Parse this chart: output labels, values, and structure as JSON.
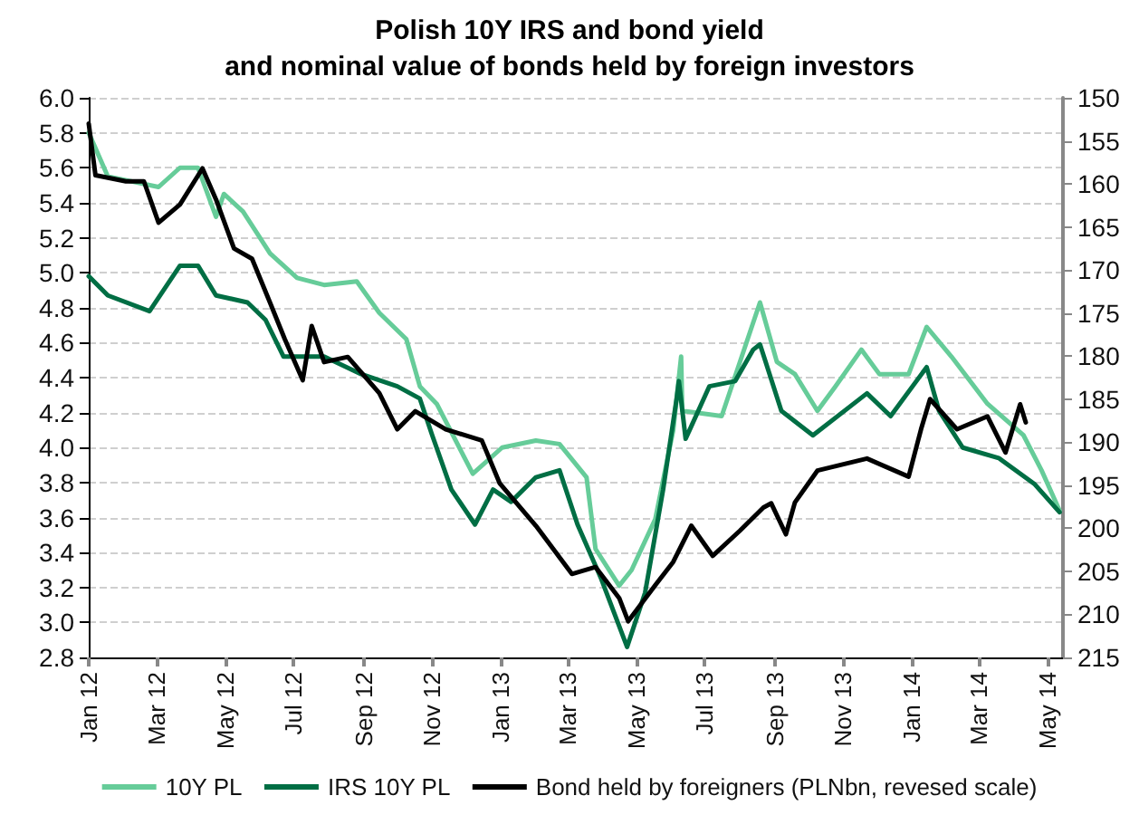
{
  "chart_data": {
    "type": "line",
    "title": "Polish 10Y IRS and bond yield\nand nominal value of bonds held by foreign investors",
    "xlim": [
      "2012-01-01",
      "2014-05-15"
    ],
    "xticks": [
      {
        "value": "2012-01-01",
        "label": "Jan 12"
      },
      {
        "value": "2012-03-01",
        "label": "Mar 12"
      },
      {
        "value": "2012-05-01",
        "label": "May 12"
      },
      {
        "value": "2012-07-01",
        "label": "Jul 12"
      },
      {
        "value": "2012-09-01",
        "label": "Sep 12"
      },
      {
        "value": "2012-11-01",
        "label": "Nov 12"
      },
      {
        "value": "2013-01-01",
        "label": "Jan 13"
      },
      {
        "value": "2013-03-01",
        "label": "Mar 13"
      },
      {
        "value": "2013-05-01",
        "label": "May 13"
      },
      {
        "value": "2013-07-01",
        "label": "Jul 13"
      },
      {
        "value": "2013-09-01",
        "label": "Sep 13"
      },
      {
        "value": "2013-11-01",
        "label": "Nov 13"
      },
      {
        "value": "2014-01-01",
        "label": "Jan 14"
      },
      {
        "value": "2014-03-01",
        "label": "Mar 14"
      },
      {
        "value": "2014-05-01",
        "label": "May 14"
      }
    ],
    "ylim": [
      2.8,
      6.0
    ],
    "yticks": [
      {
        "value": 2.8,
        "label": "2.8"
      },
      {
        "value": 3,
        "label": "3.0"
      },
      {
        "value": 3.2,
        "label": "3.2"
      },
      {
        "value": 3.4,
        "label": "3.4"
      },
      {
        "value": 3.6,
        "label": "3.6"
      },
      {
        "value": 3.8,
        "label": "3.8"
      },
      {
        "value": 4,
        "label": "4.0"
      },
      {
        "value": 4.2,
        "label": "4.2"
      },
      {
        "value": 4.4,
        "label": "4.4"
      },
      {
        "value": 4.6,
        "label": "4.6"
      },
      {
        "value": 4.8,
        "label": "4.8"
      },
      {
        "value": 5,
        "label": "5.0"
      },
      {
        "value": 5.2,
        "label": "5.2"
      },
      {
        "value": 5.4,
        "label": "5.4"
      },
      {
        "value": 5.6,
        "label": "5.6"
      },
      {
        "value": 5.8,
        "label": "5.8"
      },
      {
        "value": 6,
        "label": "6.0"
      }
    ],
    "y2lim": [
      215,
      150
    ],
    "y2ticks": [
      150,
      155,
      160,
      165,
      170,
      175,
      180,
      185,
      190,
      195,
      200,
      205,
      210,
      215
    ],
    "grid": "y",
    "legend": "bottom",
    "marker": "none",
    "line_style": "solid",
    "series": [
      {
        "name": "10Y PL",
        "color": "#66cc99",
        "x": [
          "2012-01-01",
          "2012-01-18",
          "2012-03-03",
          "2012-03-22",
          "2012-04-07",
          "2012-04-23",
          "2012-04-30",
          "2012-05-17",
          "2012-06-10",
          "2012-07-04",
          "2012-07-28",
          "2012-08-26",
          "2012-09-15",
          "2012-10-09",
          "2012-10-21",
          "2012-11-05",
          "2012-12-07",
          "2013-01-02",
          "2013-02-01",
          "2013-02-22",
          "2013-03-18",
          "2013-03-26",
          "2013-04-16",
          "2013-04-27",
          "2013-05-18",
          "2013-06-03",
          "2013-06-10",
          "2013-06-11",
          "2013-07-16",
          "2013-08-19",
          "2013-09-03",
          "2013-09-19",
          "2013-10-09",
          "2013-10-25",
          "2013-11-17",
          "2013-12-03",
          "2013-12-29",
          "2014-01-14",
          "2014-02-05",
          "2014-03-09",
          "2014-04-10",
          "2014-04-26",
          "2014-05-12"
        ],
        "values": [
          5.8,
          5.55,
          5.49,
          5.6,
          5.6,
          5.32,
          5.45,
          5.35,
          5.11,
          4.97,
          4.93,
          4.95,
          4.77,
          4.62,
          4.35,
          4.25,
          3.85,
          4.0,
          4.04,
          4.02,
          3.83,
          3.42,
          3.21,
          3.3,
          3.59,
          4.1,
          4.52,
          4.21,
          4.18,
          4.83,
          4.49,
          4.42,
          4.21,
          4.35,
          4.56,
          4.42,
          4.42,
          4.69,
          4.52,
          4.25,
          4.07,
          3.87,
          3.64
        ]
      },
      {
        "name": "IRS 10Y PL",
        "color": "#006e44",
        "x": [
          "2012-01-01",
          "2012-01-18",
          "2012-02-24",
          "2012-03-22",
          "2012-04-07",
          "2012-04-23",
          "2012-05-21",
          "2012-06-06",
          "2012-06-22",
          "2012-07-28",
          "2012-08-30",
          "2012-10-01",
          "2012-10-21",
          "2012-11-01",
          "2012-11-18",
          "2012-12-09",
          "2012-12-25",
          "2013-01-10",
          "2013-02-01",
          "2013-02-22",
          "2013-03-10",
          "2013-03-31",
          "2013-04-23",
          "2013-05-09",
          "2013-05-25",
          "2013-06-06",
          "2013-06-08",
          "2013-06-14",
          "2013-07-05",
          "2013-07-28",
          "2013-08-13",
          "2013-08-19",
          "2013-09-07",
          "2013-10-05",
          "2013-11-22",
          "2013-12-13",
          "2014-01-14",
          "2014-01-25",
          "2014-02-15",
          "2014-03-19",
          "2014-04-20",
          "2014-05-12"
        ],
        "values": [
          4.98,
          4.87,
          4.78,
          5.04,
          5.04,
          4.87,
          4.83,
          4.73,
          4.52,
          4.52,
          4.42,
          4.35,
          4.28,
          4.07,
          3.76,
          3.56,
          3.76,
          3.69,
          3.83,
          3.87,
          3.56,
          3.25,
          2.86,
          3.17,
          3.76,
          4.28,
          4.38,
          4.05,
          4.35,
          4.38,
          4.56,
          4.59,
          4.21,
          4.07,
          4.31,
          4.18,
          4.46,
          4.21,
          4.0,
          3.94,
          3.79,
          3.63
        ]
      },
      {
        "name": "Bond held by foreigners (PLNbn, revesed scale)",
        "color": "#000000",
        "axis": "y2",
        "x": [
          "2012-01-01",
          "2012-01-07",
          "2012-02-03",
          "2012-02-19",
          "2012-03-03",
          "2012-03-22",
          "2012-04-11",
          "2012-04-23",
          "2012-05-09",
          "2012-05-25",
          "2012-06-10",
          "2012-06-23",
          "2012-07-09",
          "2012-07-17",
          "2012-07-28",
          "2012-08-18",
          "2012-09-15",
          "2012-10-01",
          "2012-10-17",
          "2012-11-13",
          "2012-12-15",
          "2012-12-31",
          "2013-02-01",
          "2013-03-05",
          "2013-03-26",
          "2013-04-16",
          "2013-04-24",
          "2013-05-18",
          "2013-06-03",
          "2013-06-19",
          "2013-07-08",
          "2013-08-01",
          "2013-08-22",
          "2013-08-29",
          "2013-09-11",
          "2013-09-19",
          "2013-10-09",
          "2013-11-22",
          "2013-12-29",
          "2014-01-09",
          "2014-01-17",
          "2014-02-10",
          "2014-03-09",
          "2014-03-25",
          "2014-04-07",
          "2014-04-12"
        ],
        "values": [
          153,
          159,
          159.7,
          159.7,
          164.5,
          162.4,
          158.2,
          161.8,
          167.5,
          168.7,
          173.8,
          178,
          182.8,
          176.5,
          180.7,
          180.1,
          184.3,
          188.5,
          186.4,
          188.5,
          189.8,
          194.8,
          199.7,
          205.3,
          204.5,
          208.1,
          210.8,
          206.6,
          203.9,
          199.7,
          203.2,
          200.3,
          197.6,
          197.1,
          200.7,
          197,
          193.3,
          191.9,
          194,
          188.5,
          185,
          188.5,
          187,
          191.2,
          185.6,
          187.7
        ]
      }
    ]
  }
}
